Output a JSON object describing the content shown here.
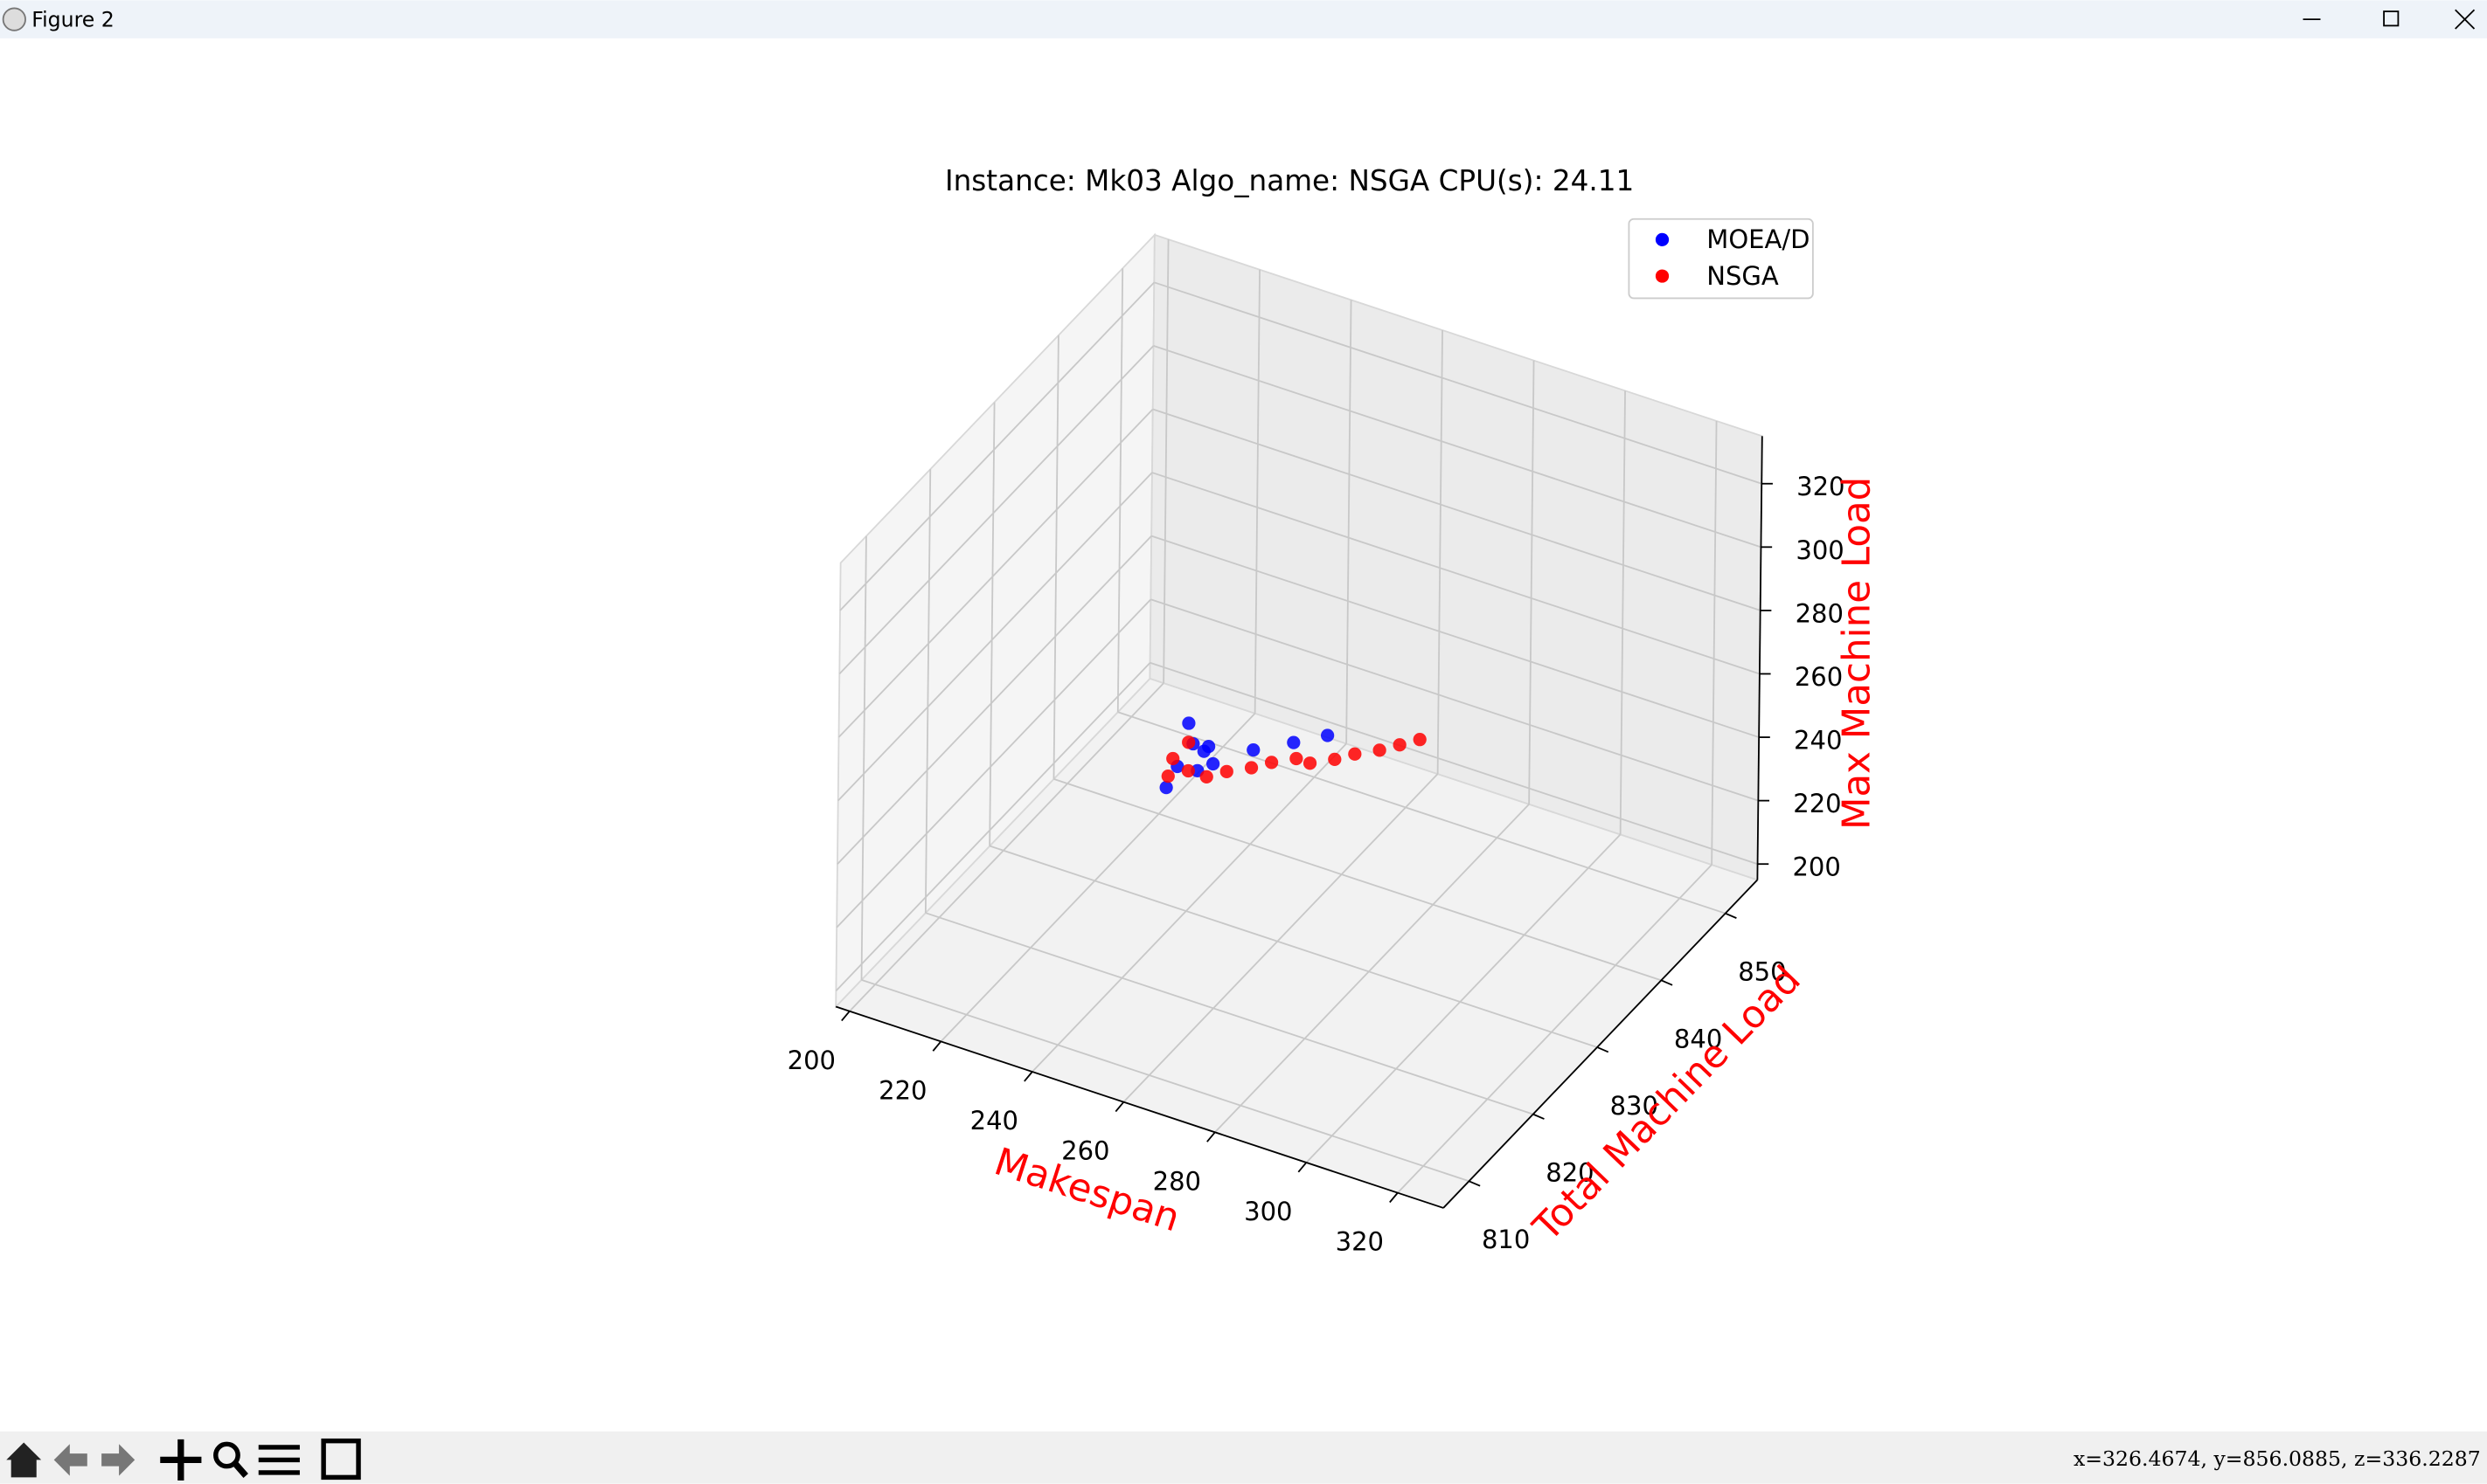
{
  "window_title": "Figure 2",
  "status": "x=326.4674,  y=856.0885,  z=336.2287",
  "chart_data": {
    "type": "scatter3d",
    "title": "Instance: Mk03 Algo_name: NSGA CPU(s): 24.11",
    "x_label": "Makespan",
    "y_label": "Total Machine Load",
    "z_label": "Max Machine Load",
    "label_color": "#ff0000",
    "xlim": [
      197,
      330
    ],
    "ylim": [
      806,
      855
    ],
    "zlim": [
      195,
      335
    ],
    "xticks": [
      200,
      220,
      240,
      260,
      280,
      300,
      320
    ],
    "yticks": [
      810,
      820,
      830,
      840,
      850
    ],
    "zticks": [
      200,
      220,
      240,
      260,
      280,
      300,
      320
    ],
    "grid": true,
    "legend": "upper right",
    "series": [
      {
        "name": "MOEA/D",
        "color": "#0000ff",
        "x": [
          236,
          237,
          239,
          238,
          235,
          240,
          246,
          252,
          258,
          234,
          238
        ],
        "y": [
          833,
          833,
          834,
          834,
          832,
          834,
          836,
          838,
          839,
          831,
          833
        ],
        "z": [
          246,
          240,
          238,
          236,
          234,
          233,
          236,
          237,
          240,
          229,
          232
        ]
      },
      {
        "name": "NSGA",
        "color": "#ff0000",
        "x": [
          233,
          236,
          240,
          243,
          247,
          250,
          254,
          257,
          261,
          264,
          268,
          271,
          274,
          236,
          234
        ],
        "y": [
          832,
          833,
          833,
          834,
          835,
          836,
          837,
          837,
          838,
          839,
          840,
          841,
          842,
          833,
          832
        ],
        "z": [
          230,
          231,
          231,
          232,
          233,
          234,
          235,
          235,
          236,
          237,
          238,
          239,
          240,
          240,
          236
        ]
      }
    ]
  }
}
